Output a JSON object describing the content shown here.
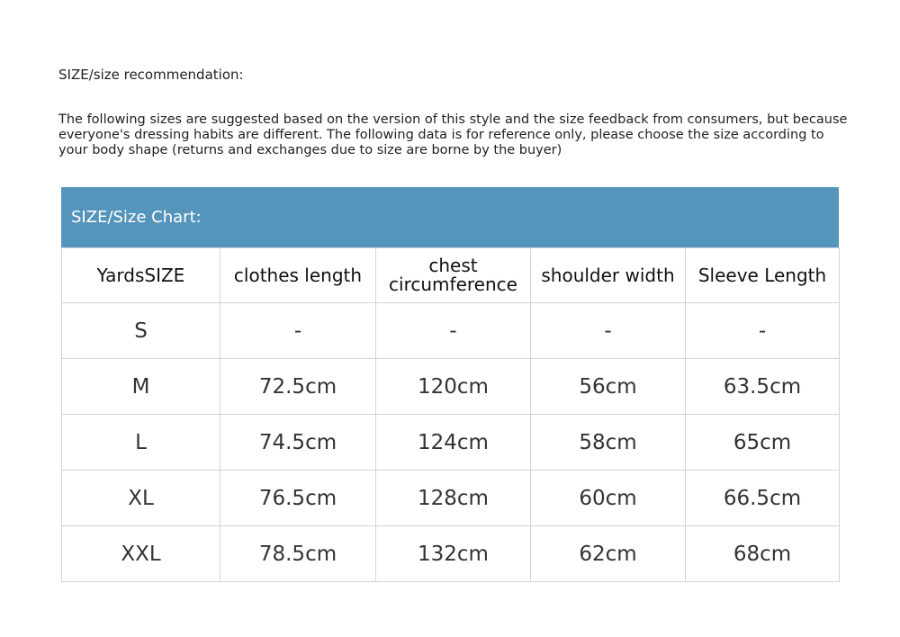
{
  "recommendation_title": "SIZE/size recommendation:",
  "note": "The following sizes are suggested based on the version of this style and the size feedback from consumers, but because everyone's dressing habits are different. The following data is for reference only, please choose the size according to your body shape (returns and exchanges due to size are borne by the buyer)",
  "chart": {
    "title": "SIZE/Size Chart:",
    "header_color": "#5595bb",
    "headers": [
      "YardsSIZE",
      "clothes length",
      "chest circumference",
      "shoulder width",
      "Sleeve Length"
    ],
    "rows": [
      [
        "S",
        "-",
        "-",
        "-",
        "-"
      ],
      [
        "M",
        "72.5cm",
        "120cm",
        "56cm",
        "63.5cm"
      ],
      [
        "L",
        "74.5cm",
        "124cm",
        "58cm",
        "65cm"
      ],
      [
        "XL",
        "76.5cm",
        "128cm",
        "60cm",
        "66.5cm"
      ],
      [
        "XXL",
        "78.5cm",
        "132cm",
        "62cm",
        "68cm"
      ]
    ]
  }
}
